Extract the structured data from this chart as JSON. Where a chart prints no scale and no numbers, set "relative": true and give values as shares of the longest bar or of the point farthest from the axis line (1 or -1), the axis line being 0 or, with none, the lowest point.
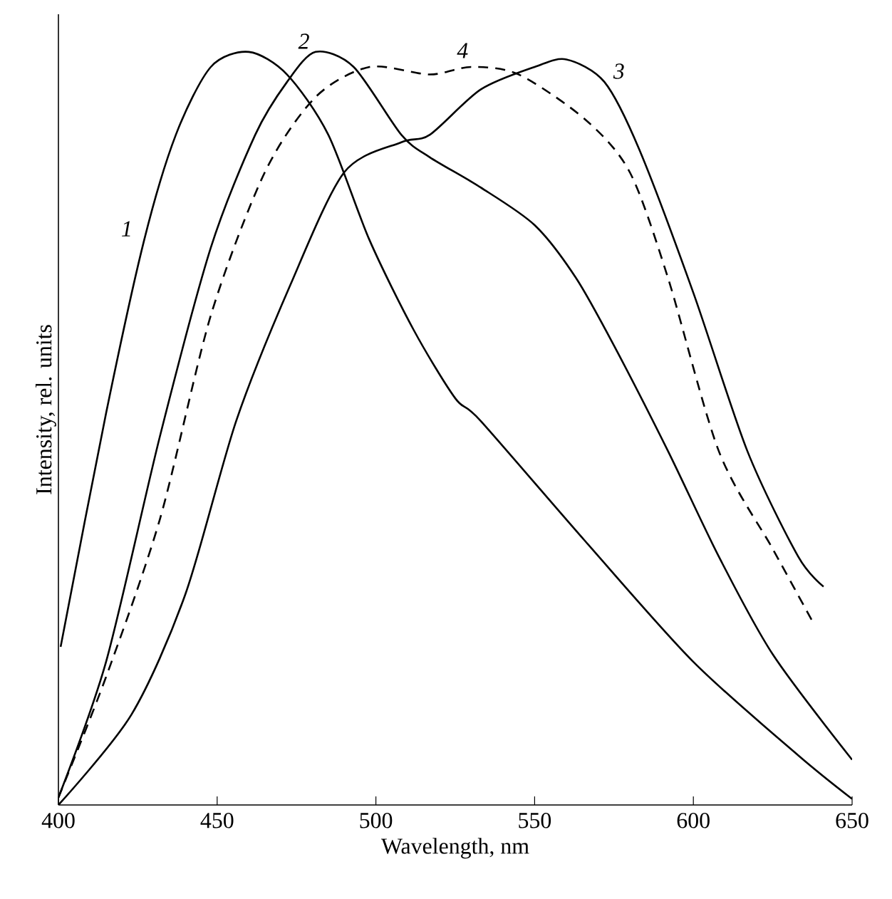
{
  "chart_data": {
    "type": "line",
    "xlabel": "Wavelength, nm",
    "ylabel": "Intensity, rel. units",
    "relative": true,
    "xlim": [
      400,
      650
    ],
    "xticks": [
      400,
      450,
      500,
      550,
      600,
      650
    ],
    "marker": "none",
    "grid": false,
    "legend": false,
    "series": [
      {
        "name": "1",
        "color": "#000000",
        "line_style": "solid",
        "x": [
          400.7,
          415,
          427,
          437,
          448,
          460,
          472,
          485,
          498,
          512,
          525,
          533,
          566,
          600,
          633,
          650
        ],
        "values": [
          0.21,
          0.52,
          0.75,
          0.89,
          0.98,
          1.0,
          0.97,
          0.89,
          0.75,
          0.63,
          0.54,
          0.51,
          0.35,
          0.19,
          0.066,
          0.008
        ]
      },
      {
        "name": "2",
        "color": "#000000",
        "line_style": "solid",
        "x": [
          400,
          415,
          432,
          448,
          462,
          472,
          481,
          493,
          508,
          517,
          533,
          550,
          563,
          575,
          592,
          608,
          625,
          650
        ],
        "values": [
          0.01,
          0.19,
          0.49,
          0.74,
          0.89,
          0.96,
          1.0,
          0.98,
          0.89,
          0.86,
          0.82,
          0.77,
          0.7,
          0.61,
          0.47,
          0.33,
          0.2,
          0.06
        ]
      },
      {
        "name": "3",
        "color": "#000000",
        "line_style": "solid",
        "x": [
          400,
          423,
          440,
          456,
          473,
          490,
          508,
          517,
          533,
          550,
          560,
          572,
          583,
          600,
          617,
          633,
          641
        ],
        "values": [
          0.0,
          0.12,
          0.28,
          0.51,
          0.69,
          0.84,
          0.88,
          0.89,
          0.95,
          0.98,
          0.99,
          0.96,
          0.87,
          0.68,
          0.47,
          0.33,
          0.29
        ]
      },
      {
        "name": "4",
        "color": "#000000",
        "line_style": "dashed",
        "x": [
          400,
          415,
          432,
          448,
          465,
          481,
          498,
          517,
          530,
          545,
          566,
          580,
          592,
          608,
          625,
          638
        ],
        "values": [
          0.01,
          0.17,
          0.38,
          0.65,
          0.84,
          0.94,
          0.98,
          0.97,
          0.98,
          0.97,
          0.91,
          0.84,
          0.7,
          0.47,
          0.34,
          0.24
        ]
      }
    ]
  }
}
